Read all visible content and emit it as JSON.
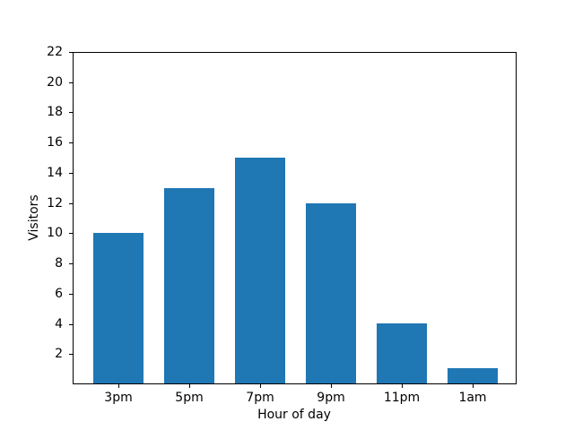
{
  "chart_data": {
    "type": "bar",
    "categories": [
      "3pm",
      "5pm",
      "7pm",
      "9pm",
      "11pm",
      "1am"
    ],
    "values": [
      10,
      13,
      15,
      12,
      4,
      1
    ],
    "title": "",
    "xlabel": "Hour of day",
    "ylabel": "Visitors",
    "ylim": [
      0,
      22
    ],
    "yticks": [
      2,
      4,
      6,
      8,
      10,
      12,
      14,
      16,
      18,
      20,
      22
    ],
    "bar_color": "#1f77b4",
    "axis_color": "#000000",
    "background_color": "#ffffff",
    "grid": false,
    "legend": null
  }
}
